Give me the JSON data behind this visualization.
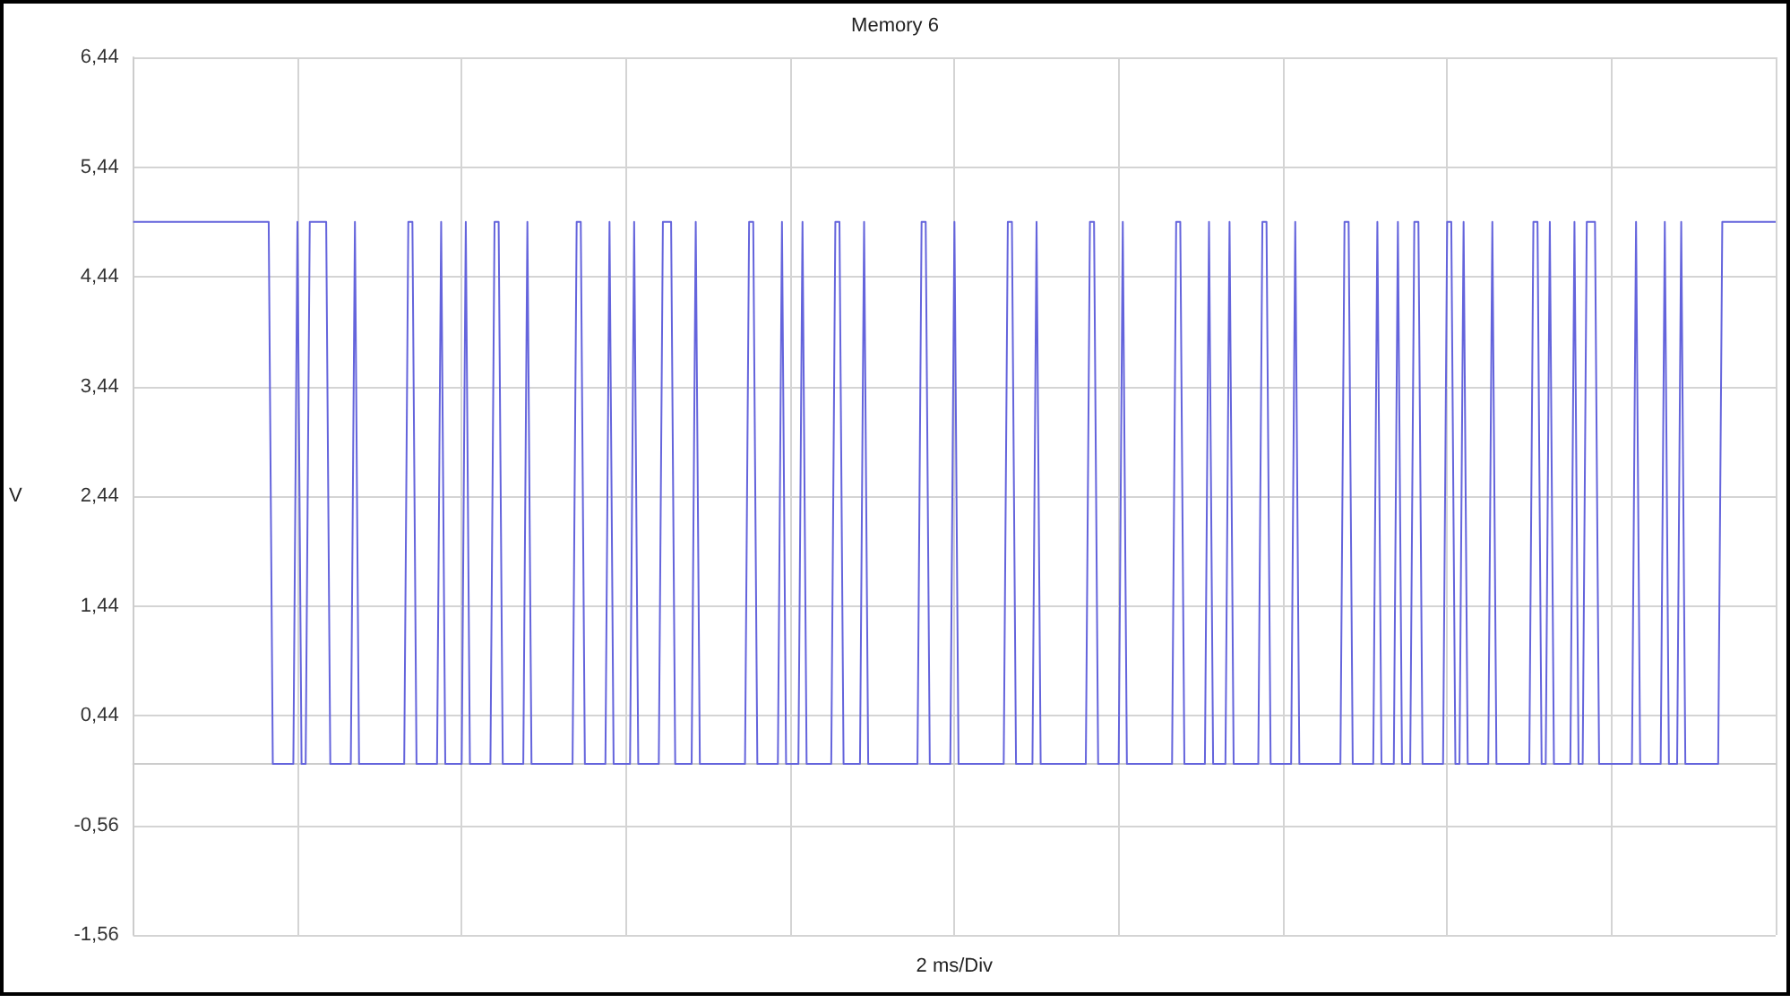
{
  "chart_data": {
    "type": "line",
    "title": "Memory 6",
    "xlabel": "2 ms/Div",
    "ylabel": "V",
    "color": "#6464dc",
    "categories": [
      null,
      null,
      null,
      null,
      null,
      null,
      null,
      null,
      null,
      null,
      null,
      null,
      null,
      null,
      null,
      null,
      null,
      null,
      null,
      null,
      null,
      null,
      null,
      null,
      null,
      null,
      null,
      null,
      null,
      null,
      null,
      null,
      null,
      null,
      null,
      null,
      null,
      null,
      null,
      null,
      null,
      null,
      null,
      null,
      null,
      null,
      null,
      null,
      null,
      null,
      null,
      null,
      null,
      null,
      null,
      null,
      null,
      null,
      null,
      null,
      null,
      null,
      null,
      null,
      null,
      null,
      null,
      null,
      null,
      null,
      null,
      null,
      null,
      null,
      null,
      null,
      null,
      null,
      null,
      null,
      null,
      null,
      null,
      null,
      null,
      null,
      null,
      null,
      null,
      null,
      null,
      null,
      null,
      null,
      null,
      null,
      null,
      null,
      null,
      null,
      null,
      null,
      null,
      null,
      null,
      null,
      null,
      null,
      null,
      null,
      null,
      null,
      null,
      null,
      null,
      null,
      null,
      null,
      null,
      null,
      null,
      null,
      null,
      null,
      null,
      null,
      null,
      null,
      null,
      null,
      null,
      null,
      null,
      null,
      null,
      null,
      null,
      null,
      null,
      null,
      null,
      null,
      null,
      null,
      null,
      null,
      null,
      null,
      null,
      null,
      null,
      null,
      null,
      null,
      null,
      null,
      null,
      null,
      null,
      null,
      null,
      null,
      null,
      null,
      null,
      null,
      null,
      null,
      null,
      null,
      null,
      null,
      null,
      null,
      null,
      null,
      null,
      null,
      null,
      null,
      null,
      null,
      null,
      null,
      null,
      null,
      null,
      null,
      null,
      null,
      null,
      null,
      null,
      null,
      null,
      null,
      null,
      null,
      null,
      null,
      null,
      null,
      null,
      null,
      null,
      null,
      null,
      null,
      null,
      null,
      null,
      null,
      null,
      null,
      null,
      null,
      null,
      null,
      null,
      null,
      null,
      null,
      null,
      null,
      null,
      null,
      null,
      null,
      null,
      null,
      null,
      null,
      null,
      null,
      null,
      null,
      null,
      null,
      null,
      null,
      null,
      null,
      null,
      null,
      null,
      null,
      null,
      null,
      null,
      null,
      null,
      null,
      null,
      null,
      null,
      null,
      null,
      null,
      null,
      null,
      null,
      null,
      null,
      null,
      null,
      null,
      null,
      null,
      null,
      null,
      null,
      null,
      null,
      null,
      null,
      null,
      null,
      null,
      null,
      null,
      null,
      null,
      null,
      null,
      null,
      null,
      null,
      null,
      null,
      null,
      null,
      null,
      null,
      null,
      null,
      null,
      null,
      null,
      null,
      null,
      null,
      null,
      null,
      null,
      null,
      null,
      null,
      null,
      null,
      null,
      null,
      null,
      null,
      null,
      null,
      null,
      null,
      null,
      null,
      null,
      null,
      null,
      null,
      null,
      null,
      null,
      null,
      null,
      null,
      null,
      null,
      null,
      null,
      null,
      null,
      null,
      null,
      null,
      null,
      null,
      null,
      null,
      null,
      null,
      null,
      null,
      null,
      null,
      null,
      null,
      null,
      null,
      null,
      null,
      null,
      null,
      null,
      null,
      null,
      null,
      null,
      null,
      null,
      null,
      null,
      null,
      null,
      null,
      null,
      null,
      null,
      null,
      null,
      null,
      null,
      null,
      null,
      null,
      null,
      null,
      null,
      null,
      null,
      null,
      null,
      null,
      null,
      null,
      null,
      null,
      null,
      null,
      null,
      null,
      null,
      null,
      null,
      null,
      null,
      null,
      null
    ],
    "values": [
      4.94,
      4.94,
      4.94,
      4.94,
      4.94,
      4.94,
      4.94,
      4.94,
      4.94,
      4.94,
      4.94,
      4.94,
      4.94,
      4.94,
      4.94,
      4.94,
      4.94,
      4.94,
      4.94,
      4.94,
      4.94,
      4.94,
      4.94,
      4.94,
      4.94,
      4.94,
      4.94,
      4.94,
      4.94,
      4.94,
      4.94,
      4.94,
      4.94,
      4.94,
      0,
      0,
      0,
      0,
      0,
      0,
      4.94,
      0,
      0,
      4.94,
      4.94,
      4.94,
      4.94,
      4.94,
      0,
      0,
      0,
      0,
      0,
      0,
      4.94,
      0,
      0,
      0,
      0,
      0,
      0,
      0,
      0,
      0,
      0,
      0,
      0,
      4.94,
      4.94,
      0,
      0,
      0,
      0,
      0,
      0,
      4.94,
      0,
      0,
      0,
      0,
      0,
      4.94,
      0,
      0,
      0,
      0,
      0,
      0,
      4.94,
      4.94,
      0,
      0,
      0,
      0,
      0,
      0,
      4.94,
      0,
      0,
      0,
      0,
      0,
      0,
      0,
      0,
      0,
      0,
      0,
      4.94,
      4.94,
      0,
      0,
      0,
      0,
      0,
      0,
      4.94,
      0,
      0,
      0,
      0,
      0,
      4.94,
      0,
      0,
      0,
      0,
      0,
      0,
      4.94,
      4.94,
      4.94,
      0,
      0,
      0,
      0,
      0,
      4.94,
      0,
      0,
      0,
      0,
      0,
      0,
      0,
      0,
      0,
      0,
      0,
      0,
      4.94,
      4.94,
      0,
      0,
      0,
      0,
      0,
      0,
      4.94,
      0,
      0,
      0,
      0,
      4.94,
      0,
      0,
      0,
      0,
      0,
      0,
      0,
      4.94,
      4.94,
      0,
      0,
      0,
      0,
      0,
      4.94,
      0,
      0,
      0,
      0,
      0,
      0,
      0,
      0,
      0,
      0,
      0,
      0,
      0,
      4.94,
      4.94,
      0,
      0,
      0,
      0,
      0,
      0,
      4.94,
      0,
      0,
      0,
      0,
      0,
      0,
      0,
      0,
      0,
      0,
      0,
      0,
      4.94,
      4.94,
      0,
      0,
      0,
      0,
      0,
      4.94,
      0,
      0,
      0,
      0,
      0,
      0,
      0,
      0,
      0,
      0,
      0,
      0,
      4.94,
      4.94,
      0,
      0,
      0,
      0,
      0,
      0,
      4.94,
      0,
      0,
      0,
      0,
      0,
      0,
      0,
      0,
      0,
      0,
      0,
      0,
      4.94,
      4.94,
      0,
      0,
      0,
      0,
      0,
      0,
      4.94,
      0,
      0,
      0,
      0,
      4.94,
      0,
      0,
      0,
      0,
      0,
      0,
      0,
      4.94,
      4.94,
      0,
      0,
      0,
      0,
      0,
      0,
      4.94,
      0,
      0,
      0,
      0,
      0,
      0,
      0,
      0,
      0,
      0,
      0,
      4.94,
      4.94,
      0,
      0,
      0,
      0,
      0,
      0,
      4.94,
      0,
      0,
      0,
      0,
      4.94,
      0,
      0,
      0,
      4.94,
      4.94,
      0,
      0,
      0,
      0,
      0,
      0,
      4.94,
      4.94,
      0,
      0,
      4.94,
      0,
      0,
      0,
      0,
      0,
      0,
      4.94,
      0,
      0,
      0,
      0,
      0,
      0,
      0,
      0,
      0,
      4.94,
      4.94,
      0,
      0,
      4.94,
      0,
      0,
      0,
      0,
      0,
      4.94,
      0,
      0,
      4.94,
      4.94,
      4.94,
      0,
      0,
      0,
      0,
      0,
      0,
      0,
      0,
      0,
      4.94,
      0,
      0,
      0,
      0,
      0,
      0,
      4.94,
      0,
      0,
      0,
      4.94,
      0,
      0,
      0,
      0,
      0,
      0,
      0,
      0,
      0,
      4.94,
      4.94,
      4.94,
      4.94,
      4.94,
      4.94,
      4.94,
      4.94,
      4.94,
      4.94,
      4.94,
      4.94,
      4.94,
      4.94
    ],
    "ylim": [
      -1.56,
      6.44
    ],
    "yticks": [
      {
        "value": -1.56,
        "label": "-1,56"
      },
      {
        "value": -0.56,
        "label": "-0,56"
      },
      {
        "value": 0.44,
        "label": "0,44"
      },
      {
        "value": 1.44,
        "label": "1,44"
      },
      {
        "value": 2.44,
        "label": "2,44"
      },
      {
        "value": 3.44,
        "label": "3,44"
      },
      {
        "value": 4.44,
        "label": "4,44"
      },
      {
        "value": 5.44,
        "label": "5,44"
      },
      {
        "value": 6.44,
        "label": "6,44"
      }
    ],
    "grid": true,
    "tick_labels": "y"
  }
}
